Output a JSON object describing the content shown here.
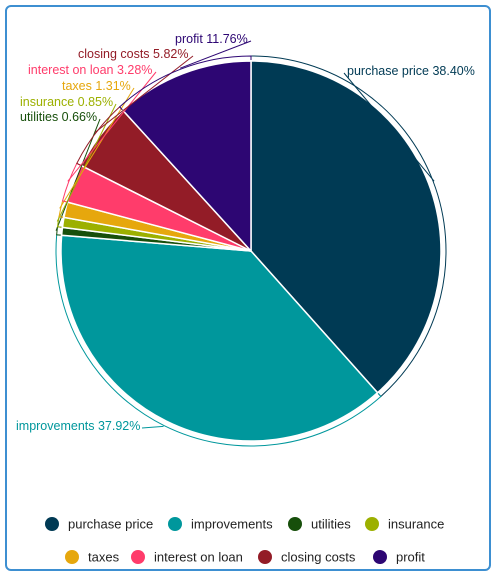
{
  "chart_data": {
    "type": "pie",
    "series": [
      {
        "name": "purchase price",
        "value": 38.4,
        "label": "purchase price 38.40%",
        "color": "#003a54"
      },
      {
        "name": "improvements",
        "value": 37.92,
        "label": "improvements 37.92%",
        "color": "#00979c"
      },
      {
        "name": "utilities",
        "value": 0.66,
        "label": "utilities 0.66%",
        "color": "#174f0b"
      },
      {
        "name": "insurance",
        "value": 0.85,
        "label": "insurance 0.85%",
        "color": "#9cb000"
      },
      {
        "name": "taxes",
        "value": 1.31,
        "label": "taxes 1.31%",
        "color": "#e6a70d"
      },
      {
        "name": "interest on loan",
        "value": 3.28,
        "label": "interest on loan 3.28%",
        "color": "#ff3c6b"
      },
      {
        "name": "closing costs",
        "value": 5.82,
        "label": "closing costs 5.82%",
        "color": "#931c27"
      },
      {
        "name": "profit",
        "value": 11.76,
        "label": "profit 11.76%",
        "color": "#2d0673"
      }
    ],
    "legend_position": "bottom"
  }
}
